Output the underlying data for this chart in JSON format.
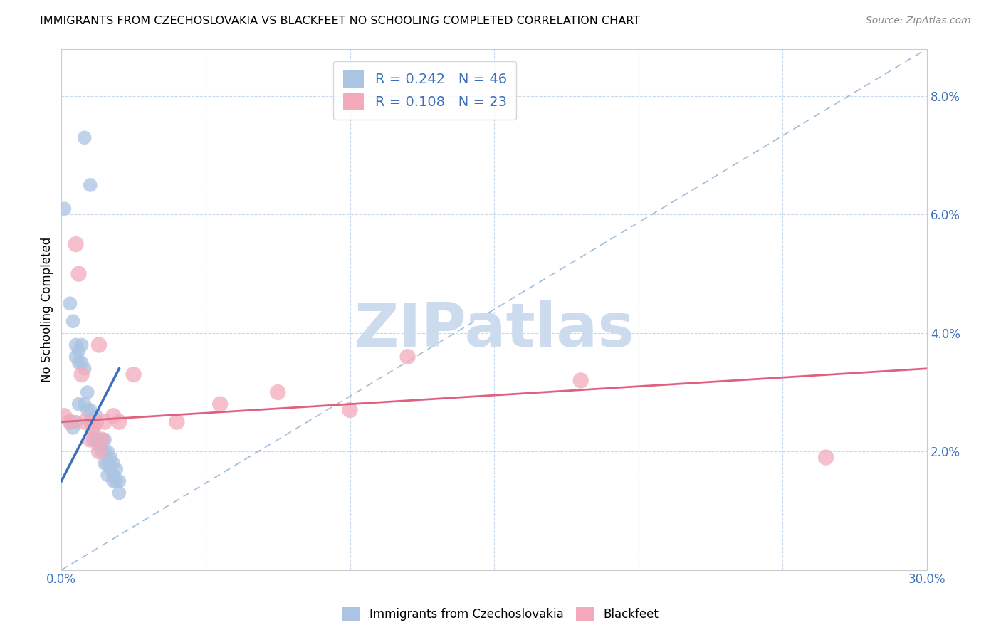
{
  "title": "IMMIGRANTS FROM CZECHOSLOVAKIA VS BLACKFEET NO SCHOOLING COMPLETED CORRELATION CHART",
  "source": "Source: ZipAtlas.com",
  "ylabel": "No Schooling Completed",
  "xlim": [
    0.0,
    0.3
  ],
  "ylim": [
    0.0,
    0.088
  ],
  "ytick_right_positions": [
    0.0,
    0.02,
    0.04,
    0.06,
    0.08
  ],
  "ytick_right_labels": [
    "",
    "2.0%",
    "4.0%",
    "6.0%",
    "8.0%"
  ],
  "xticks": [
    0.0,
    0.05,
    0.1,
    0.15,
    0.2,
    0.25,
    0.3
  ],
  "xtick_labels": [
    "0.0%",
    "",
    "",
    "",
    "",
    "",
    "30.0%"
  ],
  "legend_R1": "0.242",
  "legend_N1": "46",
  "legend_R2": "0.108",
  "legend_N2": "23",
  "blue_color": "#aac4e2",
  "blue_line_color": "#3a6fbc",
  "pink_color": "#f4aabb",
  "pink_line_color": "#e06080",
  "watermark": "ZIPatlas",
  "watermark_color": "#ccdcee",
  "blue_scatter_x": [
    0.008,
    0.01,
    0.001,
    0.003,
    0.004,
    0.003,
    0.004,
    0.005,
    0.005,
    0.005,
    0.006,
    0.006,
    0.006,
    0.007,
    0.007,
    0.008,
    0.008,
    0.009,
    0.009,
    0.01,
    0.01,
    0.01,
    0.011,
    0.011,
    0.011,
    0.012,
    0.012,
    0.013,
    0.013,
    0.014,
    0.014,
    0.015,
    0.015,
    0.015,
    0.016,
    0.016,
    0.016,
    0.017,
    0.017,
    0.018,
    0.018,
    0.018,
    0.019,
    0.019,
    0.02,
    0.02
  ],
  "blue_scatter_y": [
    0.073,
    0.065,
    0.061,
    0.045,
    0.042,
    0.025,
    0.024,
    0.038,
    0.036,
    0.025,
    0.037,
    0.035,
    0.028,
    0.038,
    0.035,
    0.034,
    0.028,
    0.03,
    0.027,
    0.027,
    0.025,
    0.025,
    0.025,
    0.024,
    0.022,
    0.026,
    0.022,
    0.022,
    0.021,
    0.022,
    0.02,
    0.022,
    0.02,
    0.018,
    0.02,
    0.018,
    0.016,
    0.019,
    0.017,
    0.018,
    0.016,
    0.015,
    0.017,
    0.015,
    0.015,
    0.013
  ],
  "pink_scatter_x": [
    0.001,
    0.003,
    0.005,
    0.006,
    0.007,
    0.008,
    0.01,
    0.011,
    0.012,
    0.013,
    0.013,
    0.014,
    0.015,
    0.018,
    0.02,
    0.025,
    0.04,
    0.055,
    0.075,
    0.1,
    0.12,
    0.18,
    0.265
  ],
  "pink_scatter_y": [
    0.026,
    0.025,
    0.055,
    0.05,
    0.033,
    0.025,
    0.022,
    0.024,
    0.025,
    0.02,
    0.038,
    0.022,
    0.025,
    0.026,
    0.025,
    0.033,
    0.025,
    0.028,
    0.03,
    0.027,
    0.036,
    0.032,
    0.019
  ],
  "blue_line_x": [
    0.0,
    0.02
  ],
  "blue_line_y": [
    0.015,
    0.034
  ],
  "pink_line_x": [
    0.0,
    0.3
  ],
  "pink_line_y": [
    0.025,
    0.034
  ],
  "diag_line_x": [
    0.0,
    0.3
  ],
  "diag_line_y": [
    0.0,
    0.088
  ]
}
